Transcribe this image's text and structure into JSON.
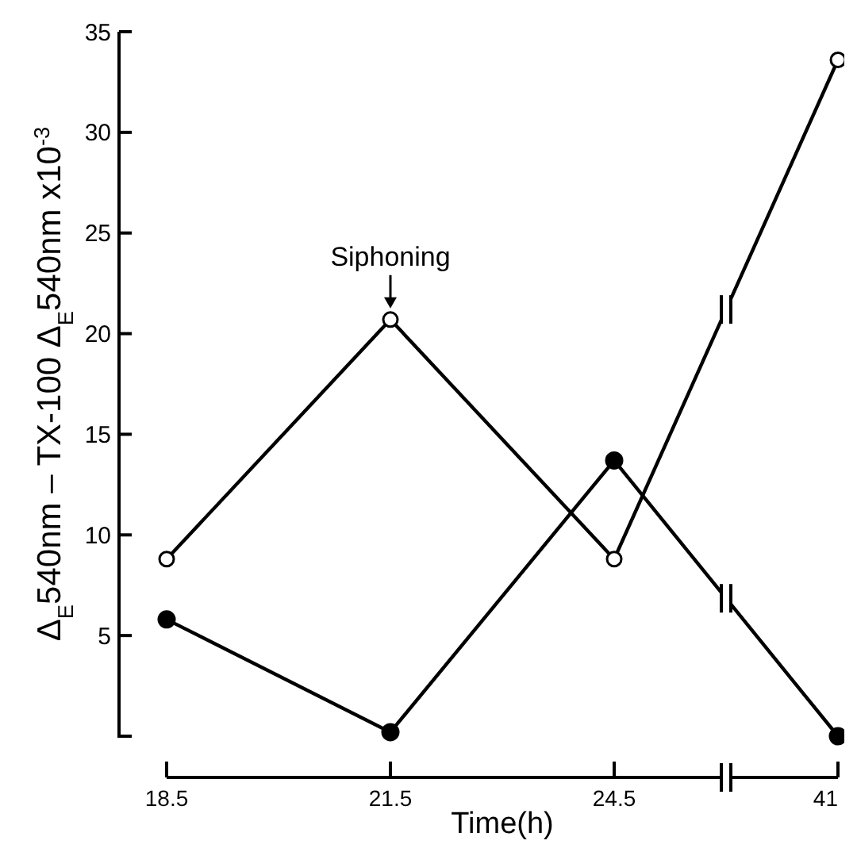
{
  "chart_data": {
    "type": "line",
    "xlabel": "Time(h)",
    "ylabel": "Δ$_{E}$540nm – TX-100   Δ$_{E}$540nm x10$^{-3}$",
    "categories": [
      "18.5",
      "21.5",
      "24.5",
      "41"
    ],
    "ylim": [
      0,
      35
    ],
    "yticks": [
      5,
      10,
      15,
      20,
      25,
      30,
      35
    ],
    "grid": false,
    "line_style": "solid",
    "series": [
      {
        "color": "#000000",
        "marker": "open circle",
        "values": [
          8.8,
          20.7,
          8.8,
          33.6
        ]
      },
      {
        "color": "#000000",
        "marker": "circle",
        "values": [
          5.8,
          0.2,
          13.7,
          0
        ]
      }
    ],
    "annotations": [
      {
        "text": "Siphoning",
        "x": "21.5",
        "y": 20.7
      }
    ]
  }
}
